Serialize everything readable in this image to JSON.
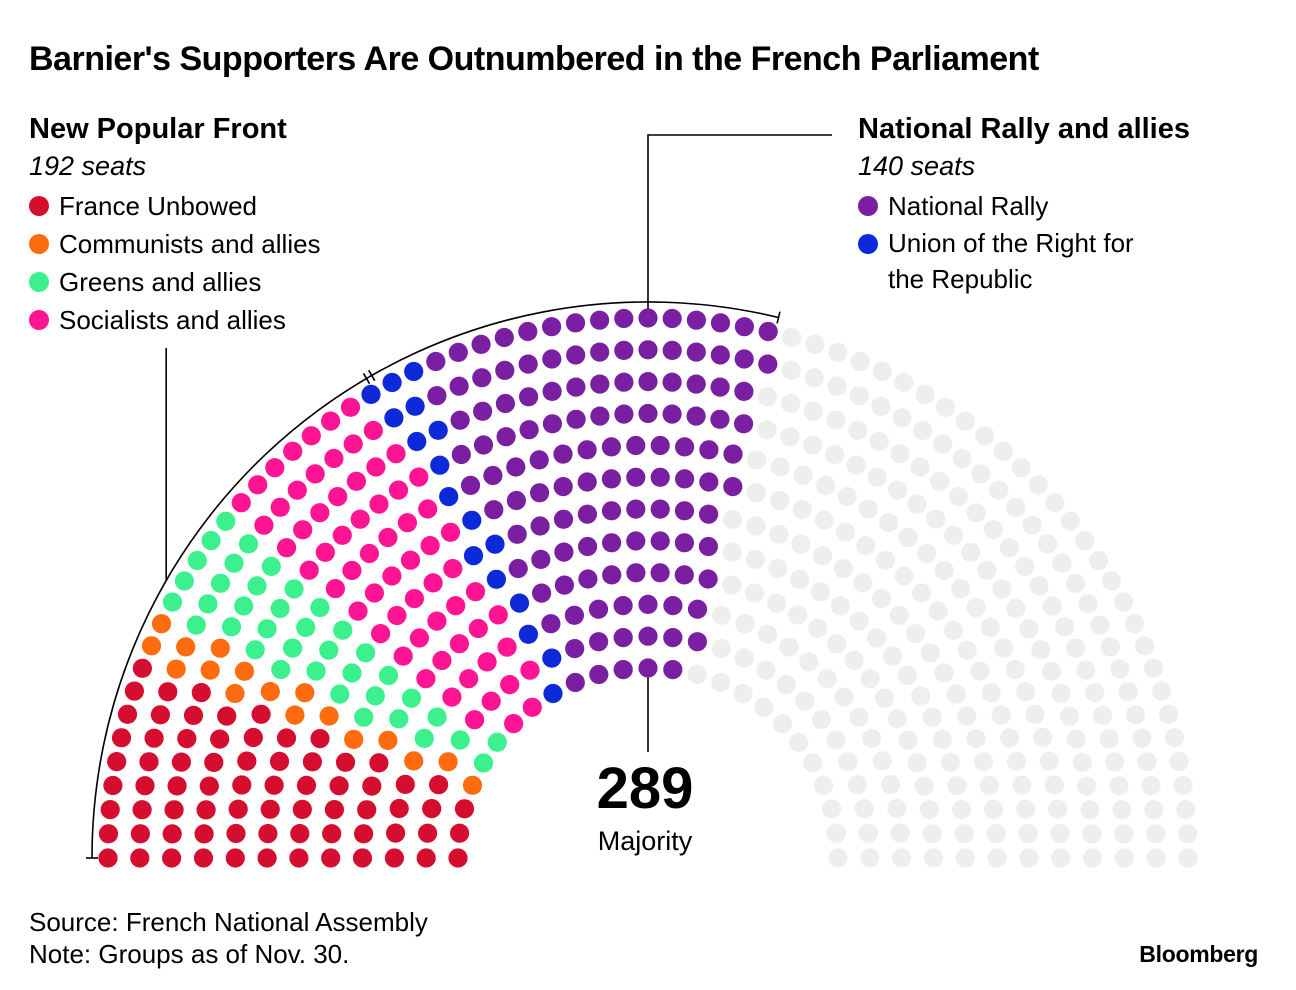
{
  "title": "Barnier's Supporters Are Outnumbered in the French Parliament",
  "left_group": {
    "name": "New Popular Front",
    "seats_label": "192 seats",
    "parties": [
      {
        "label": "France Unbowed",
        "color": "#d50d2f"
      },
      {
        "label": "Communists and allies",
        "color": "#ff6c10"
      },
      {
        "label": "Greens and allies",
        "color": "#3df08e"
      },
      {
        "label": "Socialists and allies",
        "color": "#ff1493"
      }
    ]
  },
  "right_group": {
    "name": "National Rally and allies",
    "seats_label": "140 seats",
    "parties": [
      {
        "label": "National Rally",
        "color": "#7a1fa2"
      },
      {
        "label": "Union of the Right for the Republic",
        "color": "#0e2ad8"
      }
    ]
  },
  "majority": {
    "value": "289",
    "label": "Majority"
  },
  "source": "Source: French National Assembly",
  "note": "Note: Groups as of Nov. 30.",
  "brand": "Bloomberg",
  "chart_data": {
    "type": "parliament",
    "total_seats": 577,
    "majority": 289,
    "rows": 12,
    "groups": [
      {
        "name": "New Popular Front",
        "seats": 192
      },
      {
        "name": "National Rally and allies",
        "seats": 140
      }
    ],
    "series": [
      {
        "name": "France Unbowed",
        "seats": 72,
        "color": "#d50d2f"
      },
      {
        "name": "Communists and allies",
        "seats": 17,
        "color": "#ff6c10"
      },
      {
        "name": "Greens and allies",
        "seats": 38,
        "color": "#3df08e"
      },
      {
        "name": "Socialists and allies",
        "seats": 65,
        "color": "#ff1493"
      },
      {
        "name": "Union of the Right for the Republic",
        "seats": 17,
        "color": "#0e2ad8"
      },
      {
        "name": "National Rally",
        "seats": 123,
        "color": "#7a1fa2"
      },
      {
        "name": "Other",
        "seats": 245,
        "color": "#eeeeee"
      }
    ]
  }
}
